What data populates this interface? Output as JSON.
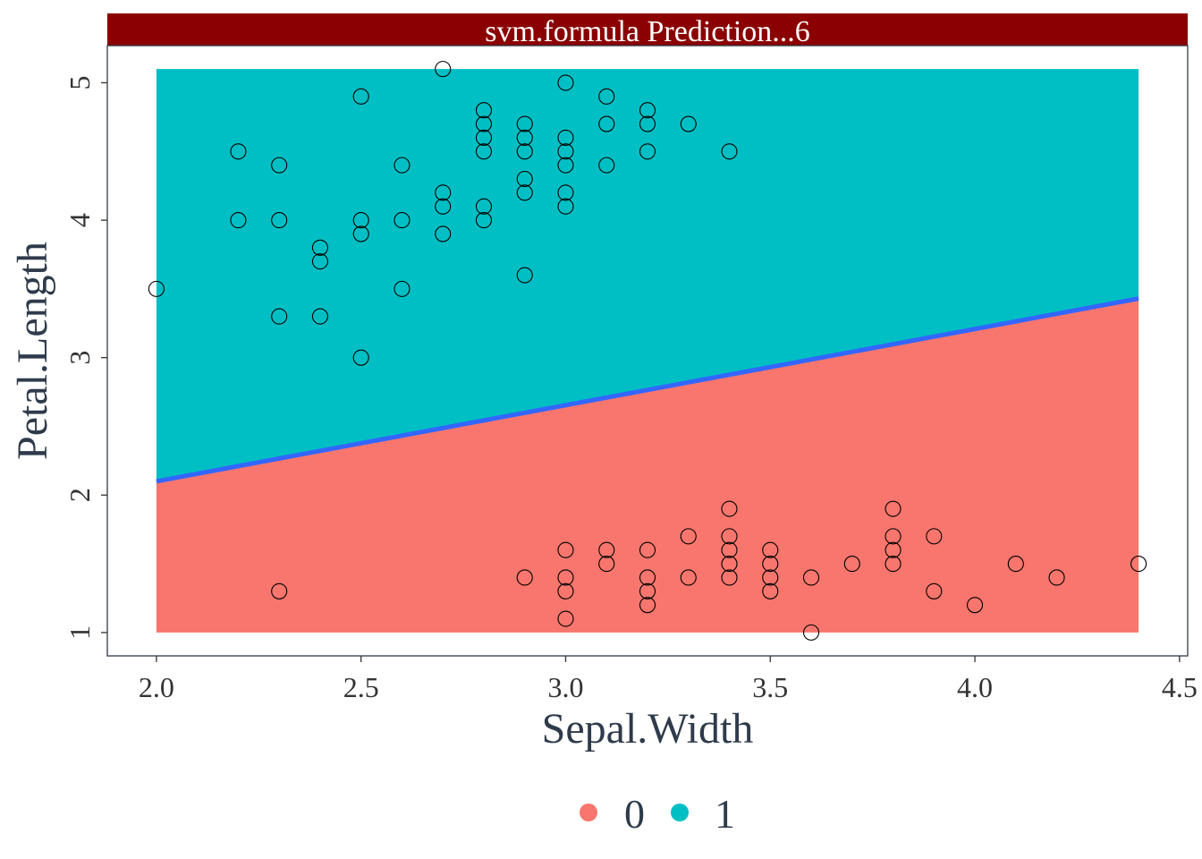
{
  "chart_data": {
    "type": "scatter",
    "title": "svm.formula  Prediction...6",
    "xlabel": "Sepal.Width",
    "ylabel": "Petal.Length",
    "xlim": [
      1.88,
      4.52
    ],
    "ylim": [
      0.83,
      5.27
    ],
    "x_ticks": [
      2.0,
      2.5,
      3.0,
      3.5,
      4.0,
      4.5
    ],
    "x_tick_labels": [
      "2.0",
      "2.5",
      "3.0",
      "3.5",
      "4.0",
      "4.5"
    ],
    "y_ticks": [
      1,
      2,
      3,
      4,
      5
    ],
    "y_tick_labels": [
      "1",
      "2",
      "3",
      "4",
      "5"
    ],
    "grid": false,
    "legend_position": "bottom",
    "legend": [
      {
        "label": "0",
        "color": "#F8766D"
      },
      {
        "label": "1",
        "color": "#00BFC4"
      }
    ],
    "prediction_region": {
      "x_range": [
        2.0,
        4.4
      ],
      "y_range": [
        1.0,
        5.1
      ],
      "class_below_boundary": "0",
      "class_above_boundary": "1"
    },
    "decision_boundary": {
      "color": "#3366FF",
      "points": [
        [
          2.0,
          2.1
        ],
        [
          4.4,
          3.43
        ]
      ]
    },
    "points": [
      [
        2.0,
        3.5
      ],
      [
        2.2,
        4.5
      ],
      [
        2.2,
        4.0
      ],
      [
        2.3,
        4.4
      ],
      [
        2.3,
        4.0
      ],
      [
        2.3,
        3.3
      ],
      [
        2.3,
        1.3
      ],
      [
        2.4,
        3.8
      ],
      [
        2.4,
        3.7
      ],
      [
        2.4,
        3.3
      ],
      [
        2.5,
        4.9
      ],
      [
        2.5,
        4.0
      ],
      [
        2.5,
        3.9
      ],
      [
        2.5,
        3.0
      ],
      [
        2.6,
        4.4
      ],
      [
        2.6,
        4.0
      ],
      [
        2.6,
        3.5
      ],
      [
        2.7,
        5.1
      ],
      [
        2.7,
        4.2
      ],
      [
        2.7,
        4.1
      ],
      [
        2.7,
        3.9
      ],
      [
        2.8,
        4.8
      ],
      [
        2.8,
        4.7
      ],
      [
        2.8,
        4.6
      ],
      [
        2.8,
        4.5
      ],
      [
        2.8,
        4.1
      ],
      [
        2.8,
        4.0
      ],
      [
        2.9,
        4.7
      ],
      [
        2.9,
        4.6
      ],
      [
        2.9,
        4.5
      ],
      [
        2.9,
        4.3
      ],
      [
        2.9,
        4.2
      ],
      [
        2.9,
        3.6
      ],
      [
        2.9,
        1.4
      ],
      [
        3.0,
        5.0
      ],
      [
        3.0,
        4.6
      ],
      [
        3.0,
        4.5
      ],
      [
        3.0,
        4.4
      ],
      [
        3.0,
        4.2
      ],
      [
        3.0,
        4.1
      ],
      [
        3.0,
        1.6
      ],
      [
        3.0,
        1.4
      ],
      [
        3.0,
        1.3
      ],
      [
        3.0,
        1.1
      ],
      [
        3.1,
        4.9
      ],
      [
        3.1,
        4.7
      ],
      [
        3.1,
        4.4
      ],
      [
        3.1,
        1.6
      ],
      [
        3.1,
        1.5
      ],
      [
        3.2,
        4.8
      ],
      [
        3.2,
        4.7
      ],
      [
        3.2,
        4.5
      ],
      [
        3.2,
        1.6
      ],
      [
        3.2,
        1.4
      ],
      [
        3.2,
        1.3
      ],
      [
        3.2,
        1.2
      ],
      [
        3.3,
        4.7
      ],
      [
        3.3,
        1.7
      ],
      [
        3.3,
        1.4
      ],
      [
        3.4,
        4.5
      ],
      [
        3.4,
        1.9
      ],
      [
        3.4,
        1.7
      ],
      [
        3.4,
        1.6
      ],
      [
        3.4,
        1.5
      ],
      [
        3.4,
        1.4
      ],
      [
        3.5,
        1.6
      ],
      [
        3.5,
        1.5
      ],
      [
        3.5,
        1.4
      ],
      [
        3.5,
        1.3
      ],
      [
        3.6,
        1.4
      ],
      [
        3.6,
        1.0
      ],
      [
        3.7,
        1.5
      ],
      [
        3.8,
        1.9
      ],
      [
        3.8,
        1.7
      ],
      [
        3.8,
        1.6
      ],
      [
        3.8,
        1.5
      ],
      [
        3.9,
        1.7
      ],
      [
        3.9,
        1.3
      ],
      [
        4.0,
        1.2
      ],
      [
        4.1,
        1.5
      ],
      [
        4.2,
        1.4
      ],
      [
        4.4,
        1.5
      ]
    ]
  }
}
